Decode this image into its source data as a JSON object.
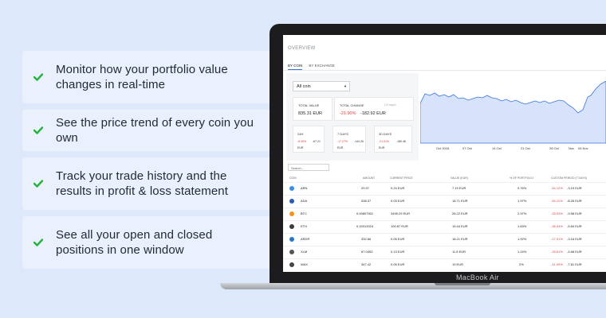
{
  "features": [
    {
      "text": "Monitor how your portfolio value changes in real-time"
    },
    {
      "text": "See the price trend of every coin you own"
    },
    {
      "text": "Track your trade history and the results in profit & loss statement"
    },
    {
      "text": "See all your open and closed positions in one window"
    }
  ],
  "colors": {
    "check": "#22b33c",
    "accent": "#3b74e0",
    "negative": "#e23b3b",
    "chart_fill": "#d6e3fb",
    "chart_line": "#3b74e0"
  },
  "laptop": {
    "brand": "MacBook Air"
  },
  "screen": {
    "title": "OVERVIEW",
    "tabs": [
      "BY COIN",
      "BY EXCHANGE"
    ],
    "coin_select": "All coin",
    "total_value": {
      "label": "TOTAL VALUE",
      "value": "835.31 EUR"
    },
    "total_change": {
      "label": "TOTAL CHANGE",
      "sub": "(13 days)",
      "pct": "-21.90%",
      "eur": "-182.92 EUR"
    },
    "periods": [
      {
        "label": "24H",
        "pct": "-8.05%",
        "eur": "-67.21",
        "unit": "EUR"
      },
      {
        "label": "7 DAYS",
        "pct": "-17.27%",
        "eur": "-144.26",
        "unit": "EUR"
      },
      {
        "label": "30 DAYS",
        "pct": "-21.61%",
        "eur": "-180.48",
        "unit": "EUR"
      }
    ],
    "chart_labels": [
      "Oct 2018",
      "07 Oct",
      "14 Oct",
      "21 Oct",
      "28 Oct",
      "Nov",
      "04 Nov"
    ],
    "search_placeholder": "Search...",
    "columns": [
      "COIN",
      "AMOUNT",
      "CURRENT PRICE",
      "VALUE (EUR)",
      "% OF PORTFOLIO",
      "CUSTOM PERIOD (7 DAYS)"
    ],
    "rows": [
      {
        "coin": "ARN",
        "amount": "29.97",
        "price": "0.24 EUR",
        "value": "7.19 EUR",
        "pct": "0.76%",
        "change_pct": "-44.12%",
        "change_eur": "-3.19 EUR",
        "icon_color": "#3b8ee6"
      },
      {
        "coin": "ADA",
        "amount": "538.37",
        "price": "0.03 EUR",
        "value": "18.71 EUR",
        "pct": "1.97%",
        "change_pct": "-44.11%",
        "change_eur": "-8.26 EUR",
        "icon_color": "#2a5bb8"
      },
      {
        "coin": "BTC",
        "amount": "0.00807501",
        "price": "3495.29 EUR",
        "value": "28.22 EUR",
        "pct": "2.97%",
        "change_pct": "-33.93%",
        "change_eur": "-9.58 EUR",
        "icon_color": "#f7931a"
      },
      {
        "coin": "ETH",
        "amount": "0.15312024",
        "price": "100.87 EUR",
        "value": "15.44 EUR",
        "pct": "1.63%",
        "change_pct": "-36.44%",
        "change_eur": "-5.84 EUR",
        "icon_color": "#3c3c3d"
      },
      {
        "coin": "ARDR",
        "amount": "332.66",
        "price": "0.05 EUR",
        "value": "18.21 EUR",
        "pct": "1.92%",
        "change_pct": "-17.01%",
        "change_eur": "-3.16 EUR",
        "icon_color": "#2c74c9"
      },
      {
        "coin": "XLM",
        "amount": "87.0453",
        "price": "0.13 EUR",
        "value": "11.8 EUR",
        "pct": "1.24%",
        "change_pct": "-39.61%",
        "change_eur": "-4.68 EUR",
        "icon_color": "#555"
      },
      {
        "coin": "WAX",
        "amount": "347.42",
        "price": "0.05 EUR",
        "value": "19 EUR",
        "pct": "2%",
        "change_pct": "-41.09%",
        "change_eur": "-7.81 EUR",
        "icon_color": "#444"
      }
    ]
  }
}
